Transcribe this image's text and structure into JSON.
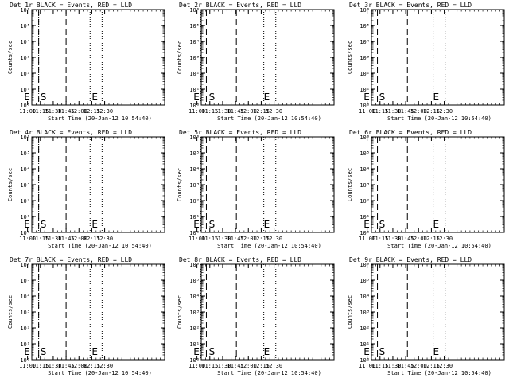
{
  "chart_data": [
    {
      "type": "line",
      "title": "Det 1r BLACK = Events, RED = LLD",
      "xlabel": "Start Time (20-Jan-12 10:54:40)",
      "ylabel": "Counts/sec",
      "xticks": [
        "11:00",
        "11:15",
        "11:30",
        "11:45",
        "12:00",
        "12:15",
        "12:30"
      ],
      "yticks": [
        "10⁰",
        "10¹",
        "10²",
        "10³",
        "10⁴",
        "10⁵",
        "10⁶"
      ],
      "scale": "log",
      "ylim": [
        1,
        1000000
      ],
      "xlim_minutes": [
        65,
        220
      ],
      "dotted_lines": [
        "11:13",
        "12:13",
        "12:27"
      ],
      "dashed_lines": [
        "11:13",
        "11:45"
      ],
      "markers": [
        {
          "text": "E",
          "at": "10:55"
        },
        {
          "text": "S",
          "at": "11:14"
        },
        {
          "text": "E",
          "at": "12:14"
        }
      ],
      "series": []
    },
    {
      "type": "line",
      "title": "Det 2r BLACK = Events, RED = LLD",
      "xlabel": "Start Time (20-Jan-12 10:54:40)",
      "ylabel": "Counts/sec",
      "xticks": [
        "11:00",
        "11:15",
        "11:30",
        "11:45",
        "12:00",
        "12:15",
        "12:30"
      ],
      "yticks": [
        "10⁰",
        "10¹",
        "10²",
        "10³",
        "10⁴",
        "10⁵",
        "10⁶"
      ],
      "scale": "log",
      "ylim": [
        1,
        1000000
      ],
      "xlim_minutes": [
        65,
        220
      ],
      "dotted_lines": [
        "11:04",
        "12:18",
        "12:32"
      ],
      "dashed_lines": [
        "11:11",
        "11:46"
      ],
      "markers": [
        {
          "text": "E",
          "at": "10:55"
        },
        {
          "text": "S",
          "at": "11:13"
        },
        {
          "text": "E",
          "at": "12:17"
        }
      ],
      "series": []
    },
    {
      "type": "line",
      "title": "Det 3r BLACK = Events, RED = LLD",
      "xlabel": "Start Time (20-Jan-12 10:54:40)",
      "ylabel": "Counts/sec",
      "xticks": [
        "11:00",
        "11:15",
        "11:30",
        "11:45",
        "12:00",
        "12:15",
        "12:30"
      ],
      "yticks": [
        "10⁰",
        "10¹",
        "10²",
        "10³",
        "10⁴",
        "10⁵",
        "10⁶"
      ],
      "scale": "log",
      "ylim": [
        1,
        1000000
      ],
      "xlim_minutes": [
        65,
        220
      ],
      "dotted_lines": [
        "11:05",
        "12:17",
        "12:31"
      ],
      "dashed_lines": [
        "11:12",
        "11:47"
      ],
      "markers": [
        {
          "text": "E",
          "at": "10:55"
        },
        {
          "text": "S",
          "at": "11:13"
        },
        {
          "text": "E",
          "at": "12:16"
        }
      ],
      "series": []
    },
    {
      "type": "line",
      "title": "Det 4r BLACK = Events, RED = LLD",
      "xlabel": "Start Time (20-Jan-12 10:54:40)",
      "ylabel": "Counts/sec",
      "xticks": [
        "11:00",
        "11:15",
        "11:30",
        "11:45",
        "12:00",
        "12:15",
        "12:30"
      ],
      "yticks": [
        "10⁰",
        "10¹",
        "10²",
        "10³",
        "10⁴",
        "10⁵",
        "10⁶"
      ],
      "scale": "log",
      "ylim": [
        1,
        1000000
      ],
      "xlim_minutes": [
        65,
        220
      ],
      "dotted_lines": [
        "11:13",
        "12:13",
        "12:27"
      ],
      "dashed_lines": [
        "11:13",
        "11:45"
      ],
      "markers": [
        {
          "text": "E",
          "at": "10:55"
        },
        {
          "text": "S",
          "at": "11:14"
        },
        {
          "text": "E",
          "at": "12:14"
        }
      ],
      "series": []
    },
    {
      "type": "line",
      "title": "Det 5r BLACK = Events, RED = LLD",
      "xlabel": "Start Time (20-Jan-12 10:54:40)",
      "ylabel": "Counts/sec",
      "xticks": [
        "11:00",
        "11:15",
        "11:30",
        "11:45",
        "12:00",
        "12:15",
        "12:30"
      ],
      "yticks": [
        "10⁰",
        "10¹",
        "10²",
        "10³",
        "10⁴",
        "10⁵",
        "10⁶"
      ],
      "scale": "log",
      "ylim": [
        1,
        1000000
      ],
      "xlim_minutes": [
        65,
        220
      ],
      "dotted_lines": [
        "11:04",
        "12:18",
        "12:32"
      ],
      "dashed_lines": [
        "11:11",
        "11:46"
      ],
      "markers": [
        {
          "text": "E",
          "at": "10:55"
        },
        {
          "text": "S",
          "at": "11:13"
        },
        {
          "text": "E",
          "at": "12:17"
        }
      ],
      "series": []
    },
    {
      "type": "line",
      "title": "Det 6r BLACK = Events, RED = LLD",
      "xlabel": "Start Time (20-Jan-12 10:54:40)",
      "ylabel": "Counts/sec",
      "xticks": [
        "11:00",
        "11:15",
        "11:30",
        "11:45",
        "12:00",
        "12:15",
        "12:30"
      ],
      "yticks": [
        "10⁰",
        "10¹",
        "10²",
        "10³",
        "10⁴",
        "10⁵",
        "10⁶"
      ],
      "scale": "log",
      "ylim": [
        1,
        1000000
      ],
      "xlim_minutes": [
        65,
        220
      ],
      "dotted_lines": [
        "11:05",
        "12:17",
        "12:31"
      ],
      "dashed_lines": [
        "11:12",
        "11:47"
      ],
      "markers": [
        {
          "text": "E",
          "at": "10:55"
        },
        {
          "text": "S",
          "at": "11:13"
        },
        {
          "text": "E",
          "at": "12:16"
        }
      ],
      "series": []
    },
    {
      "type": "line",
      "title": "Det 7r BLACK = Events, RED = LLD",
      "xlabel": "Start Time (20-Jan-12 10:54:40)",
      "ylabel": "Counts/sec",
      "xticks": [
        "11:00",
        "11:15",
        "11:30",
        "11:45",
        "12:00",
        "12:15",
        "12:30"
      ],
      "yticks": [
        "10⁰",
        "10¹",
        "10²",
        "10³",
        "10⁴",
        "10⁵",
        "10⁶"
      ],
      "scale": "log",
      "ylim": [
        1,
        1000000
      ],
      "xlim_minutes": [
        65,
        220
      ],
      "dotted_lines": [
        "11:13",
        "12:13",
        "12:27"
      ],
      "dashed_lines": [
        "11:13",
        "11:45"
      ],
      "markers": [
        {
          "text": "E",
          "at": "10:55"
        },
        {
          "text": "S",
          "at": "11:14"
        },
        {
          "text": "E",
          "at": "12:14"
        }
      ],
      "series": []
    },
    {
      "type": "line",
      "title": "Det 8r BLACK = Events, RED = LLD",
      "xlabel": "Start Time (20-Jan-12 10:54:40)",
      "ylabel": "Counts/sec",
      "xticks": [
        "11:00",
        "11:15",
        "11:30",
        "11:45",
        "12:00",
        "12:15",
        "12:30"
      ],
      "yticks": [
        "10⁰",
        "10¹",
        "10²",
        "10³",
        "10⁴",
        "10⁵",
        "10⁶"
      ],
      "scale": "log",
      "ylim": [
        1,
        1000000
      ],
      "xlim_minutes": [
        65,
        220
      ],
      "dotted_lines": [
        "11:04",
        "12:18",
        "12:32"
      ],
      "dashed_lines": [
        "11:11",
        "11:46"
      ],
      "markers": [
        {
          "text": "E",
          "at": "10:55"
        },
        {
          "text": "S",
          "at": "11:13"
        },
        {
          "text": "E",
          "at": "12:17"
        }
      ],
      "series": []
    },
    {
      "type": "line",
      "title": "Det 9r BLACK = Events, RED = LLD",
      "xlabel": "Start Time (20-Jan-12 10:54:40)",
      "ylabel": "Counts/sec",
      "xticks": [
        "11:00",
        "11:15",
        "11:30",
        "11:45",
        "12:00",
        "12:15",
        "12:30"
      ],
      "yticks": [
        "10⁰",
        "10¹",
        "10²",
        "10³",
        "10⁴",
        "10⁵",
        "10⁶"
      ],
      "scale": "log",
      "ylim": [
        1,
        1000000
      ],
      "xlim_minutes": [
        65,
        220
      ],
      "dotted_lines": [
        "11:05",
        "12:17",
        "12:31"
      ],
      "dashed_lines": [
        "11:12",
        "11:47"
      ],
      "markers": [
        {
          "text": "E",
          "at": "10:55"
        },
        {
          "text": "S",
          "at": "11:13"
        },
        {
          "text": "E",
          "at": "12:16"
        }
      ],
      "series": []
    }
  ],
  "colors": {
    "background": "#ffffff",
    "ink": "#000000",
    "lld": "#ff0000"
  }
}
